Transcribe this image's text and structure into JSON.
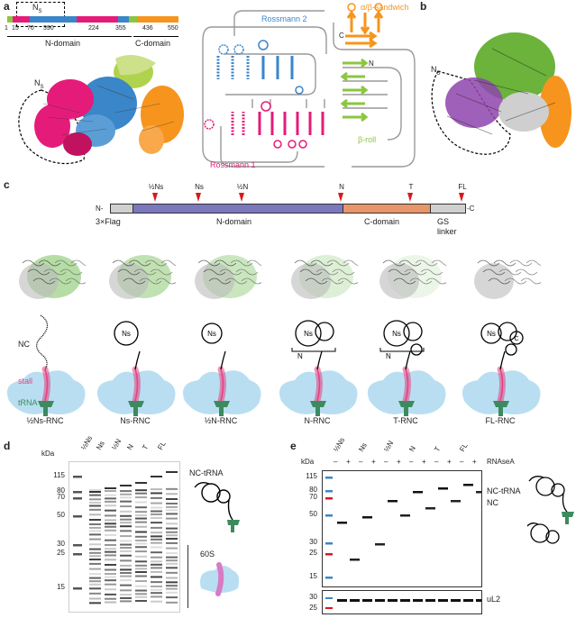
{
  "panels": {
    "a": "a",
    "b": "b",
    "c": "c",
    "d": "d",
    "e": "e"
  },
  "colors": {
    "n_small": "#e51b7a",
    "rossmann1": "#e51b7a",
    "rossmann2": "#3a86c8",
    "beta_roll": "#8cc63f",
    "alpha_beta": "#f7941d",
    "n_domain_bar": "#7b78bd",
    "c_domain_bar": "#e8956a",
    "gray_bar": "#d0d0d0",
    "stall": "#e8417f",
    "trna": "#3d8a5f",
    "ribosome": "#b9def2",
    "arrow_red": "#d7191c"
  },
  "panel_a": {
    "ns_label": "N",
    "ns_sub": "S",
    "ticks": [
      "1",
      "15",
      "70",
      "224",
      "355",
      "436",
      "550"
    ],
    "tick_390": "390",
    "n_domain": "N-domain",
    "c_domain": "C-domain",
    "structure_ns": "N",
    "structure_ns_sub": "S",
    "topology": {
      "alpha_beta": "α/β-sandwich",
      "rossmann2": "Rossmann 2",
      "rossmann1": "Rossmann 1",
      "beta_roll": "β-roll",
      "n_term": "N",
      "c_term": "C"
    }
  },
  "panel_b": {
    "ns": "N",
    "ns_sub": "S"
  },
  "panel_c": {
    "constructs": [
      {
        "label": "½Ns"
      },
      {
        "label": "Ns"
      },
      {
        "label": "½N"
      },
      {
        "label": "N"
      },
      {
        "label": "T"
      },
      {
        "label": "FL"
      }
    ],
    "n_term": "N-",
    "c_term": "-C",
    "flag": "3×Flag",
    "n_domain": "N-domain",
    "c_domain": "C-domain",
    "gs_linker": "GS\nlinker",
    "nc": "NC",
    "stall": "stall",
    "trna": "tRNA",
    "bubble_ns": "Ns",
    "bubble_c": "C",
    "bracket_n": "N",
    "rnc_labels": [
      "½Ns-RNC",
      "Ns-RNC",
      "½N-RNC",
      "N-RNC",
      "T-RNC",
      "FL-RNC"
    ]
  },
  "panel_d": {
    "kda": "kDa",
    "markers": [
      "115",
      "80",
      "70",
      "50",
      "30",
      "25",
      "15"
    ],
    "lanes": [
      "½Ns",
      "Ns",
      "½N",
      "N",
      "T",
      "FL"
    ],
    "nc_trna": "NC-tRNA",
    "s60": "60S"
  },
  "panel_e": {
    "kda": "kDa",
    "lanes": [
      "½Ns",
      "Ns",
      "½N",
      "N",
      "T",
      "FL"
    ],
    "pm": [
      "–",
      "+",
      "–",
      "+",
      "–",
      "+",
      "–",
      "+",
      "–",
      "+",
      "–",
      "+"
    ],
    "rnasea": "RNAseA",
    "markers_top": [
      "115",
      "80",
      "70",
      "50",
      "30",
      "25",
      "15"
    ],
    "markers_bottom": [
      "30",
      "25"
    ],
    "nc_trna": "NC-tRNA",
    "nc": "NC",
    "ul2": "uL2"
  }
}
